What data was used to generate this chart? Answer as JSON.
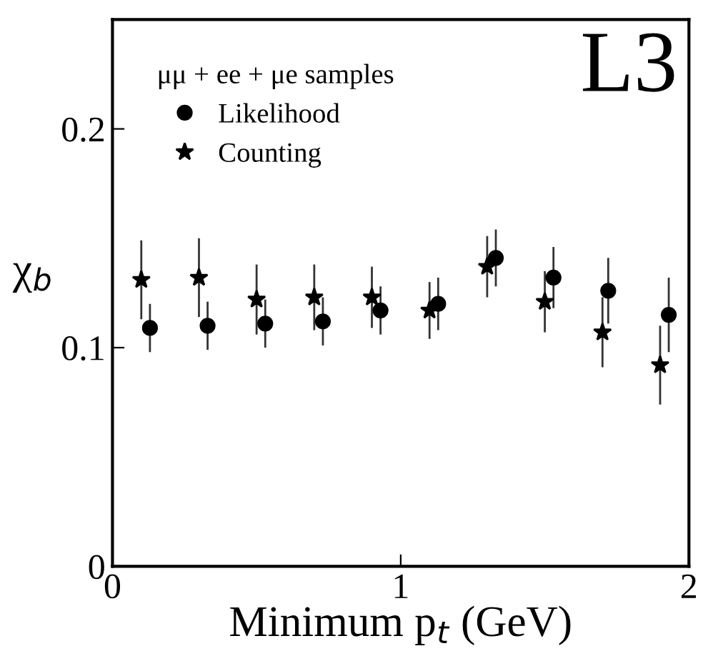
{
  "chart_data": {
    "type": "scatter",
    "xlabel": "Minimum p$_{t}$ (GeV)",
    "ylabel": "χ$_{b}$",
    "legend_title": "μμ + ee + μe samples",
    "legend": "top left",
    "annotations": [
      "L3"
    ],
    "xlim": [
      0,
      2
    ],
    "xticks": [
      0,
      1,
      2
    ],
    "ylim": [
      0,
      0.25
    ],
    "yticks": [
      0,
      0.1,
      0.2
    ],
    "grid": false,
    "series": [
      {
        "name": "Likelihood",
        "color": "#000000",
        "marker": "circle",
        "x": [
          0.13,
          0.33,
          0.53,
          0.73,
          0.93,
          1.13,
          1.33,
          1.53,
          1.72,
          1.93
        ],
        "values": [
          0.109,
          0.11,
          0.111,
          0.112,
          0.117,
          0.12,
          0.141,
          0.132,
          0.126,
          0.115
        ],
        "errors": [
          0.011,
          0.011,
          0.011,
          0.011,
          0.011,
          0.012,
          0.013,
          0.014,
          0.015,
          0.017
        ]
      },
      {
        "name": "Counting",
        "color": "#000000",
        "marker": "star",
        "x": [
          0.1,
          0.3,
          0.5,
          0.7,
          0.9,
          1.1,
          1.3,
          1.5,
          1.7,
          1.9
        ],
        "values": [
          0.131,
          0.132,
          0.122,
          0.123,
          0.123,
          0.117,
          0.137,
          0.121,
          0.107,
          0.092
        ],
        "errors": [
          0.018,
          0.018,
          0.016,
          0.015,
          0.014,
          0.013,
          0.014,
          0.014,
          0.016,
          0.018
        ]
      }
    ]
  }
}
